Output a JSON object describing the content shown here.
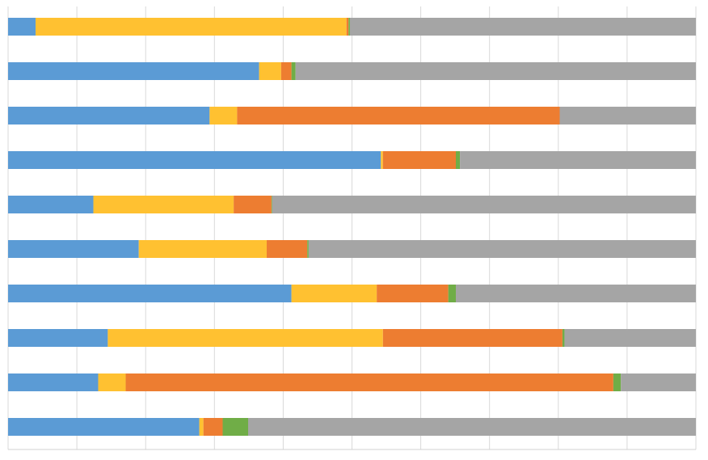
{
  "chart_data": {
    "type": "bar",
    "orientation": "horizontal",
    "stacked": true,
    "normalized": true,
    "xlim": [
      0,
      100
    ],
    "grid": true,
    "legend": "none",
    "series": [
      {
        "color": "#5B9BD5",
        "values": [
          4,
          36.5,
          29.3,
          54.2,
          12.4,
          19,
          41.2,
          14.5,
          13.1,
          27.8
        ]
      },
      {
        "color": "#FFC131",
        "values": [
          45.2,
          3.2,
          4,
          0.3,
          20.4,
          18.6,
          12.4,
          40,
          4,
          0.6
        ]
      },
      {
        "color": "#ED7D31",
        "values": [
          0.3,
          1.5,
          46.9,
          10.6,
          5.5,
          5.9,
          10.4,
          26.1,
          70.9,
          2.8
        ]
      },
      {
        "color": "#70AD47",
        "values": [
          0.2,
          0.6,
          0,
          0.6,
          0.1,
          0.2,
          1.1,
          0.3,
          1.1,
          3.7
        ]
      },
      {
        "color": "#A5A5A5",
        "values": [
          50.3,
          58.2,
          19.8,
          34.3,
          61.6,
          56.3,
          34.9,
          19.1,
          10.9,
          65.1
        ]
      }
    ]
  }
}
